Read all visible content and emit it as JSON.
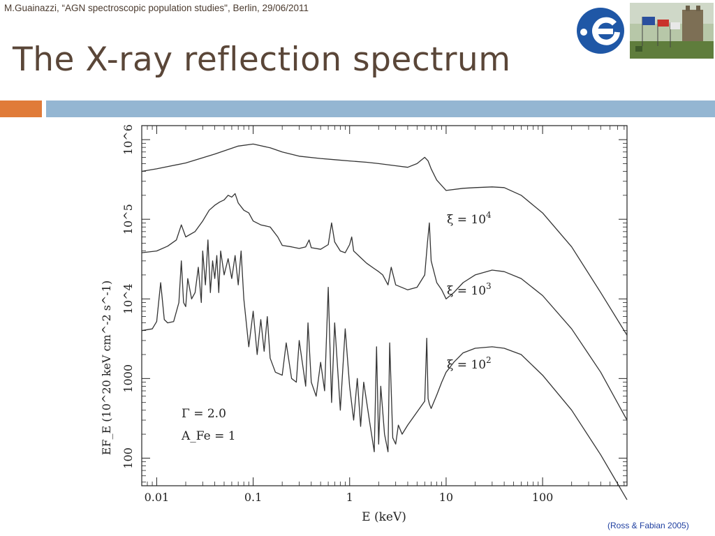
{
  "header": {
    "note": "M.Guainazzi, “AGN spectroscopic population studies\", Berlin, 29/06/2011",
    "title": "The X-ray reflection spectrum"
  },
  "logo": {
    "icon": "esa-logo-icon",
    "color": "#1f57a6"
  },
  "photo": {
    "icon": "photo-flags-castle-icon"
  },
  "decor": {
    "accent_orange": "#e07b39",
    "accent_blue": "#94b6d2"
  },
  "credit": "(Ross & Fabian 2005)",
  "chart_data": {
    "type": "line",
    "x_scale": "log",
    "y_scale": "log",
    "xlim": [
      0.007,
      750
    ],
    "ylim": [
      45,
      1500000
    ],
    "xlabel": "E (keV)",
    "ylabel": "EF_E (10^20 keV cm^-2 s^-1)",
    "x_ticks": [
      "0.01",
      "0.1",
      "1",
      "10",
      "100"
    ],
    "y_ticks": [
      "100",
      "1000",
      "10^4",
      "10^5",
      "10^6"
    ],
    "annotations": [
      "Γ = 2.0",
      "A_Fe = 1"
    ],
    "series": [
      {
        "name": "ξ = 10^4",
        "x": [
          0.007,
          0.01,
          0.02,
          0.04,
          0.07,
          0.1,
          0.15,
          0.2,
          0.3,
          0.5,
          0.7,
          1,
          1.5,
          2,
          3,
          4,
          5,
          6,
          6.5,
          7,
          8,
          10,
          15,
          20,
          30,
          40,
          60,
          100,
          200,
          400,
          750
        ],
        "y": [
          400000,
          430000,
          510000,
          660000,
          830000,
          880000,
          790000,
          700000,
          620000,
          580000,
          560000,
          540000,
          520000,
          500000,
          470000,
          450000,
          500000,
          600000,
          540000,
          430000,
          310000,
          230000,
          245000,
          250000,
          255000,
          250000,
          200000,
          120000,
          45000,
          12000,
          3500
        ]
      },
      {
        "name": "ξ = 10^3",
        "x": [
          0.007,
          0.01,
          0.013,
          0.016,
          0.018,
          0.02,
          0.025,
          0.03,
          0.035,
          0.04,
          0.045,
          0.05,
          0.055,
          0.06,
          0.065,
          0.07,
          0.08,
          0.09,
          0.1,
          0.12,
          0.15,
          0.18,
          0.2,
          0.25,
          0.3,
          0.35,
          0.38,
          0.4,
          0.5,
          0.6,
          0.65,
          0.7,
          0.8,
          0.9,
          1.0,
          1.05,
          1.1,
          1.3,
          1.5,
          1.8,
          2.0,
          2.2,
          2.5,
          2.7,
          3.0,
          4.0,
          5.0,
          6.0,
          6.4,
          6.7,
          7.0,
          8.0,
          9.0,
          10,
          12,
          15,
          20,
          30,
          40,
          60,
          100,
          200,
          400,
          750
        ],
        "y": [
          38000,
          40000,
          46000,
          55000,
          85000,
          60000,
          70000,
          95000,
          130000,
          150000,
          165000,
          175000,
          200000,
          190000,
          210000,
          160000,
          130000,
          120000,
          95000,
          85000,
          80000,
          60000,
          47000,
          45000,
          43000,
          45000,
          55000,
          44000,
          42000,
          48000,
          90000,
          52000,
          40000,
          38000,
          48000,
          60000,
          40000,
          33000,
          28000,
          24000,
          22000,
          20000,
          15000,
          25000,
          15000,
          13000,
          14000,
          20000,
          50000,
          90000,
          30000,
          16000,
          13000,
          10000,
          12000,
          16000,
          20000,
          23000,
          22000,
          18000,
          11000,
          4200,
          1200,
          300
        ]
      },
      {
        "name": "ξ = 10^2",
        "x": [
          0.007,
          0.009,
          0.01,
          0.011,
          0.012,
          0.013,
          0.015,
          0.017,
          0.018,
          0.019,
          0.02,
          0.021,
          0.023,
          0.025,
          0.027,
          0.029,
          0.03,
          0.032,
          0.034,
          0.036,
          0.038,
          0.04,
          0.042,
          0.044,
          0.046,
          0.05,
          0.055,
          0.06,
          0.065,
          0.07,
          0.075,
          0.08,
          0.09,
          0.1,
          0.11,
          0.12,
          0.13,
          0.14,
          0.15,
          0.17,
          0.2,
          0.22,
          0.25,
          0.28,
          0.3,
          0.35,
          0.37,
          0.4,
          0.45,
          0.5,
          0.55,
          0.6,
          0.65,
          0.7,
          0.8,
          0.9,
          1.0,
          1.1,
          1.2,
          1.3,
          1.4,
          1.6,
          1.8,
          1.9,
          2.0,
          2.1,
          2.3,
          2.5,
          2.6,
          2.8,
          3.0,
          3.2,
          3.5,
          4.0,
          5.0,
          6.0,
          6.3,
          6.5,
          6.7,
          7.0,
          8.0,
          9.0,
          10,
          12,
          15,
          20,
          30,
          40,
          60,
          100,
          200,
          400,
          750
        ],
        "y": [
          4000,
          4200,
          5200,
          16000,
          5500,
          5000,
          5200,
          9000,
          30000,
          9000,
          8000,
          18000,
          10000,
          12000,
          25000,
          9000,
          40000,
          15000,
          55000,
          12000,
          30000,
          18000,
          35000,
          12000,
          40000,
          20000,
          32000,
          18000,
          35000,
          15000,
          40000,
          10000,
          2500,
          7000,
          2000,
          5500,
          2200,
          6000,
          1800,
          1200,
          1100,
          2800,
          1000,
          900,
          3000,
          800,
          5000,
          900,
          600,
          1600,
          700,
          14000,
          500,
          5000,
          400,
          4200,
          800,
          300,
          1000,
          250,
          900,
          300,
          120,
          2500,
          150,
          800,
          200,
          120,
          2800,
          180,
          150,
          260,
          200,
          260,
          380,
          520,
          3200,
          560,
          480,
          420,
          620,
          900,
          1200,
          1600,
          2100,
          2400,
          2500,
          2400,
          2000,
          1100,
          400,
          110,
          30
        ]
      }
    ],
    "series_labels": [
      {
        "text_main": "ξ  =  10",
        "sup": "4"
      },
      {
        "text_main": "ξ  =  10",
        "sup": "3"
      },
      {
        "text_main": "ξ  =  10",
        "sup": "2"
      }
    ]
  }
}
